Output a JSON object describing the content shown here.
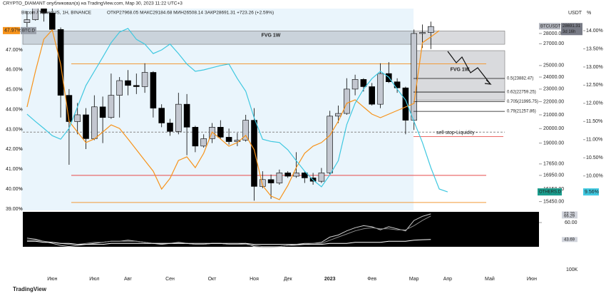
{
  "header": {
    "publisher": "CRYPTO_DIAMANT опубликовал(а) на TradingView.com, Мар 30, 2023 11:22 UTC+3",
    "symbol": "Bitcoin / Tether US, 1Н, BINANCE",
    "ohlc": "ОТКР27968.05 МАКС29184.68 МИН26508.14 ЗАКР28691.31 +723.26 (+2.59%)"
  },
  "chart_data": [
    {
      "type": "candlestick",
      "y_unit": "USDT",
      "y3_unit": "%",
      "log_scale": true,
      "categories": [
        null,
        null,
        null,
        "Июн",
        null,
        null,
        null,
        null,
        "Июл",
        null,
        null,
        null,
        "Авг",
        null,
        null,
        null,
        null,
        "Сен",
        null,
        null,
        null,
        null,
        "Окт",
        null,
        null,
        null,
        null,
        "Ноя",
        null,
        null,
        null,
        "Дек",
        null,
        null,
        null,
        null,
        "2023",
        null,
        null,
        null,
        null,
        "Фев",
        null,
        null,
        null,
        null,
        "Мар",
        null,
        null,
        null,
        "Апр",
        null,
        null,
        null,
        null,
        "Май",
        null,
        null,
        null,
        null,
        "Июн",
        null
      ],
      "open": [
        29100,
        29400,
        31800,
        30100,
        28400,
        22500,
        20500,
        21000,
        19300,
        21600,
        20800,
        22500,
        23700,
        23300,
        23200,
        24400,
        21500,
        20400,
        19800,
        21800,
        20100,
        18800,
        19300,
        20100,
        19400,
        19100,
        19200,
        20600,
        16300,
        16700,
        16500,
        17100,
        16900,
        17100,
        16800,
        16600,
        17100,
        20900,
        21100,
        23000,
        23800,
        23200,
        21800,
        24300,
        23600,
        23100,
        20600,
        28000,
        28100,
        null,
        null,
        null,
        null,
        null,
        null,
        null,
        null,
        null,
        null,
        null,
        null,
        null
      ],
      "high": [
        30300,
        32400,
        31900,
        31500,
        28600,
        23000,
        21900,
        21500,
        22500,
        22400,
        24300,
        24000,
        24600,
        24300,
        25200,
        24500,
        21800,
        20700,
        22700,
        22600,
        20200,
        19600,
        20400,
        20600,
        20000,
        19700,
        21000,
        21500,
        17200,
        17000,
        17300,
        17200,
        18400,
        17200,
        17100,
        17400,
        21300,
        21700,
        23900,
        24200,
        23900,
        23500,
        25200,
        25300,
        23900,
        23200,
        28400,
        28900,
        29200,
        null,
        null,
        null,
        null,
        null,
        null,
        null,
        null,
        null,
        null,
        null,
        null,
        null
      ],
      "low": [
        28100,
        29300,
        29200,
        28200,
        20800,
        17600,
        19600,
        18600,
        19200,
        19000,
        20700,
        20800,
        22500,
        22600,
        22700,
        20800,
        20100,
        19500,
        19600,
        18200,
        18400,
        18700,
        19000,
        19300,
        18900,
        18800,
        19100,
        15500,
        16200,
        15600,
        16400,
        16800,
        16800,
        16500,
        16400,
        16500,
        17000,
        20400,
        21000,
        22500,
        22800,
        21700,
        21500,
        23500,
        22700,
        19600,
        19900,
        26600,
        26500,
        null,
        null,
        null,
        null,
        null,
        null,
        null,
        null,
        null,
        null,
        null,
        null,
        null
      ],
      "close": [
        29400,
        31800,
        30100,
        28400,
        22500,
        20500,
        21000,
        19300,
        21600,
        20800,
        22500,
        23700,
        23300,
        23200,
        24400,
        21500,
        20400,
        19800,
        21800,
        20100,
        18800,
        19300,
        20100,
        19400,
        19100,
        19200,
        20600,
        16300,
        16700,
        16500,
        17100,
        16900,
        17100,
        16800,
        16600,
        17100,
        20900,
        21100,
        23000,
        23800,
        23200,
        21800,
        24300,
        23600,
        23100,
        20600,
        28000,
        28100,
        28700,
        null,
        null,
        null,
        null,
        null,
        null,
        null,
        null,
        null,
        null,
        null,
        null,
        null
      ],
      "up_color": "#c3c7d0",
      "down_color": "#000000",
      "ylim": [
        15050,
        30350
      ],
      "yticks": [
        {
          "value": 28000,
          "label": "28000.00"
        },
        {
          "value": 27000,
          "label": "27000.00"
        },
        {
          "value": 25000,
          "label": "25000.00"
        },
        {
          "value": 24000,
          "label": "24000.00"
        },
        {
          "value": 23000,
          "label": "23000.00"
        },
        {
          "value": 22000,
          "label": "22000.00"
        },
        {
          "value": 21000,
          "label": "21000.00"
        },
        {
          "value": 20000,
          "label": "20000.00"
        },
        {
          "value": 19000,
          "label": "19000.00"
        },
        {
          "value": 17650,
          "label": "17650.00"
        },
        {
          "value": 16950,
          "label": "16950.00"
        },
        {
          "value": 16150,
          "label": "16150.00"
        },
        {
          "value": 15450,
          "label": "15450.00"
        }
      ],
      "y2lim": [
        39,
        48.97
      ],
      "y2ticks": [
        {
          "value": 47,
          "label": "47.00%"
        },
        {
          "value": 46,
          "label": "46.00%"
        },
        {
          "value": 45,
          "label": "45.00%"
        },
        {
          "value": 44,
          "label": "44.00%"
        },
        {
          "value": 43,
          "label": "43.00%"
        },
        {
          "value": 42,
          "label": "42.00%"
        },
        {
          "value": 41,
          "label": "41.00%"
        },
        {
          "value": 40,
          "label": "40.00%"
        },
        {
          "value": 39,
          "label": "39.00%"
        }
      ],
      "y3lim": [
        9.09,
        14.55
      ],
      "y3ticks": [
        {
          "value": 14,
          "label": "14.00%"
        },
        {
          "value": 13.5,
          "label": "13.50%"
        },
        {
          "value": 13,
          "label": "13.00%"
        },
        {
          "value": 12.5,
          "label": "12.50%"
        },
        {
          "value": 12,
          "label": "12.00%"
        },
        {
          "value": 11.5,
          "label": "11.50%"
        },
        {
          "value": 11,
          "label": "11.00%"
        },
        {
          "value": 10.5,
          "label": "10.50%"
        },
        {
          "value": 10,
          "label": "10.00%"
        }
      ],
      "series": [
        {
          "name": "BTC.D",
          "color": "#f7931a",
          "axis": "y2",
          "marker": {
            "value": 47.97,
            "label": "47.97%"
          },
          "values": [
            44.13,
            45.92,
            47.54,
            48.0,
            46.28,
            43.41,
            42.87,
            42.34,
            42.52,
            42.87,
            43.23,
            43.05,
            42.52,
            41.98,
            41.44,
            40.9,
            40.0,
            40.54,
            41.44,
            41.62,
            41.08,
            41.8,
            42.87,
            42.52,
            42.16,
            42.34,
            42.7,
            41.98,
            40.18,
            39.65,
            39.47,
            40.18,
            41.08,
            41.8,
            42.16,
            42.34,
            42.7,
            43.41,
            44.31,
            44.49,
            44.13,
            43.77,
            43.59,
            43.77,
            43.95,
            44.13,
            44.31,
            47.36,
            47.65,
            47.97,
            null,
            null,
            null,
            null,
            null,
            null,
            null,
            null,
            null,
            null,
            null,
            null
          ]
        },
        {
          "name": "OTHERS.D",
          "color": "#3fc8e0",
          "axis": "y3",
          "marker": {
            "value": 9.56,
            "label": "9.56%"
          },
          "values": [
            11.7,
            11.5,
            11.31,
            11.11,
            11.01,
            11.31,
            11.9,
            12.49,
            12.88,
            13.27,
            13.67,
            13.96,
            14.06,
            13.76,
            13.63,
            13.37,
            13.47,
            13.63,
            13.37,
            13.08,
            12.88,
            12.92,
            12.98,
            13.04,
            13.08,
            12.68,
            12.33,
            11.6,
            11.01,
            10.95,
            10.92,
            10.72,
            10.42,
            10.13,
            9.89,
            9.7,
            10.03,
            10.42,
            11.41,
            12.0,
            12.39,
            12.68,
            12.88,
            12.72,
            12.39,
            12.09,
            11.5,
            10.92,
            10.23,
            9.64,
            9.56,
            null,
            null,
            null,
            null,
            null,
            null,
            null,
            null,
            null,
            null,
            null
          ]
        }
      ],
      "zones": [
        {
          "range": [
            26950,
            28250
          ],
          "label": "FVG 1W"
        },
        {
          "range": [
            22100,
            26350
          ],
          "label": "FVG 1W"
        }
      ],
      "levels": [
        {
          "value": 25150,
          "color": "#f29a38"
        },
        {
          "value": 16950,
          "color": "#e84a4a"
        },
        {
          "value": 15400,
          "color": "#f29a38"
        },
        {
          "value": 19750,
          "color": "#8a8a8a"
        }
      ],
      "fib_levels": [
        {
          "value": 23882.47,
          "label": "0.5(23882.47)"
        },
        {
          "value": 22759.25,
          "label": "0.62(22759.25)"
        },
        {
          "value": 21995.75,
          "label": "0.705(21995.75)"
        },
        {
          "value": 21257.86,
          "label": "0.79(21257.86)"
        }
      ],
      "liquidity": {
        "value": 19450,
        "label": "sell stop-Liquidity -",
        "color": "#e53935"
      },
      "price_marker": {
        "name": "BTCUSDT",
        "value": 28691.31,
        "countdown": "3d 16h"
      }
    },
    {
      "type": "line",
      "ylim": [
        36.7,
        70.3
      ],
      "yticks": [
        {
          "value": 60,
          "label": "60.00"
        }
      ],
      "series": [
        {
          "color": "#d0d0d0",
          "values": [
            45,
            44,
            42,
            40,
            38,
            37,
            38,
            39,
            40,
            41,
            42,
            42,
            43,
            42,
            41,
            40,
            39,
            40,
            41,
            40,
            39,
            39,
            40,
            40,
            39,
            39,
            40,
            37,
            36,
            36,
            37,
            38,
            39,
            40,
            40,
            41,
            46,
            48,
            52,
            55,
            57,
            56,
            53,
            56,
            54,
            52,
            62,
            66,
            68.29
          ]
        },
        {
          "color": "#8c8c8c",
          "values": [
            43,
            43,
            42,
            41,
            40,
            39,
            39,
            40,
            41,
            41,
            42,
            42,
            42,
            42,
            41,
            40,
            40,
            40,
            40,
            40,
            39,
            39,
            40,
            40,
            39,
            39,
            39,
            38,
            37,
            37,
            37,
            38,
            38,
            39,
            40,
            40,
            43,
            46,
            49,
            52,
            54,
            55,
            54,
            54,
            53,
            53,
            57,
            62,
            66.29
          ]
        },
        {
          "color": "#ffffff",
          "values": [
            42,
            42,
            41,
            41,
            40,
            40,
            39,
            39,
            39,
            39,
            40,
            40,
            40,
            40,
            40,
            40,
            40,
            40,
            40,
            40,
            40,
            40,
            40,
            40,
            40,
            40,
            40,
            39,
            39,
            39,
            39,
            39,
            39,
            39,
            39,
            39,
            40,
            40,
            40,
            41,
            41,
            41,
            41,
            42,
            42,
            42,
            43,
            43.5,
            43.69
          ]
        }
      ]
    }
  ],
  "corner_label": "100K",
  "footer": "TradingView"
}
